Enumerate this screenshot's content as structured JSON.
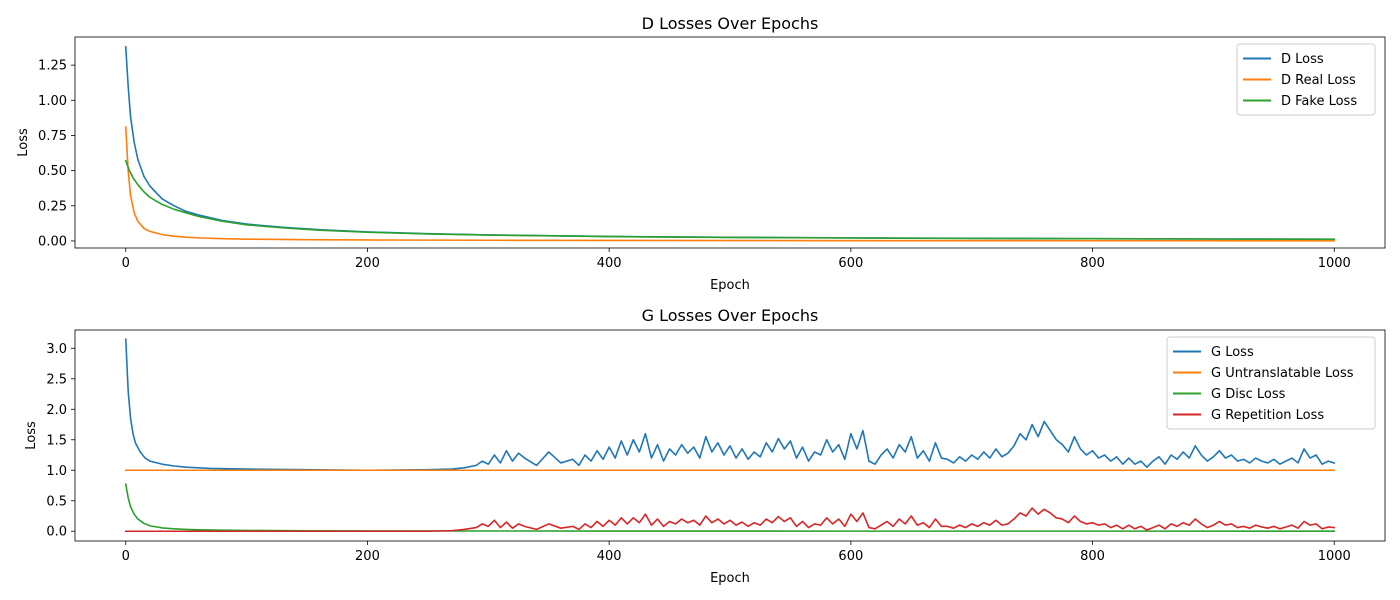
{
  "chart_data": [
    {
      "type": "line",
      "title": "D Losses Over Epochs",
      "xlabel": "Epoch",
      "ylabel": "Loss",
      "xlim": [
        -42,
        1042
      ],
      "ylim": [
        -0.05,
        1.45
      ],
      "xticks": [
        0,
        200,
        400,
        600,
        800,
        1000
      ],
      "xtick_labels": [
        "0",
        "200",
        "400",
        "600",
        "800",
        "1000"
      ],
      "yticks": [
        0.0,
        0.25,
        0.5,
        0.75,
        1.0,
        1.25
      ],
      "ytick_labels": [
        "0.00",
        "0.25",
        "0.50",
        "0.75",
        "1.00",
        "1.25"
      ],
      "grid": false,
      "legend_position": "top-right",
      "series": [
        {
          "name": "D Loss",
          "color": "#1f77b4",
          "x": [
            0,
            2,
            4,
            7,
            10,
            15,
            20,
            30,
            40,
            50,
            60,
            80,
            100,
            130,
            160,
            200,
            250,
            300,
            400,
            500,
            600,
            700,
            800,
            900,
            1000
          ],
          "y": [
            1.38,
            1.1,
            0.88,
            0.7,
            0.58,
            0.46,
            0.39,
            0.3,
            0.25,
            0.21,
            0.185,
            0.145,
            0.12,
            0.097,
            0.08,
            0.064,
            0.052,
            0.043,
            0.032,
            0.026,
            0.022,
            0.019,
            0.016,
            0.014,
            0.013
          ]
        },
        {
          "name": "D Real Loss",
          "color": "#ff7f0e",
          "x": [
            0,
            2,
            4,
            7,
            10,
            15,
            20,
            30,
            40,
            50,
            60,
            80,
            100,
            150,
            200,
            300,
            400,
            500,
            700,
            1000
          ],
          "y": [
            0.81,
            0.5,
            0.32,
            0.2,
            0.14,
            0.09,
            0.068,
            0.045,
            0.034,
            0.027,
            0.022,
            0.016,
            0.013,
            0.009,
            0.007,
            0.005,
            0.004,
            0.003,
            0.002,
            0.001
          ]
        },
        {
          "name": "D Fake Loss",
          "color": "#2ca02c",
          "x": [
            0,
            3,
            6,
            10,
            15,
            20,
            30,
            40,
            50,
            60,
            80,
            100,
            130,
            160,
            200,
            250,
            300,
            400,
            500,
            600,
            700,
            800,
            900,
            1000
          ],
          "y": [
            0.57,
            0.5,
            0.45,
            0.4,
            0.35,
            0.31,
            0.26,
            0.225,
            0.2,
            0.175,
            0.14,
            0.115,
            0.093,
            0.077,
            0.062,
            0.05,
            0.042,
            0.031,
            0.025,
            0.021,
            0.018,
            0.016,
            0.014,
            0.012
          ]
        }
      ]
    },
    {
      "type": "line",
      "title": "G Losses Over Epochs",
      "xlabel": "Epoch",
      "ylabel": "Loss",
      "xlim": [
        -42,
        1042
      ],
      "ylim": [
        -0.16,
        3.3
      ],
      "xticks": [
        0,
        200,
        400,
        600,
        800,
        1000
      ],
      "xtick_labels": [
        "0",
        "200",
        "400",
        "600",
        "800",
        "1000"
      ],
      "yticks": [
        0.0,
        0.5,
        1.0,
        1.5,
        2.0,
        2.5,
        3.0
      ],
      "ytick_labels": [
        "0.0",
        "0.5",
        "1.0",
        "1.5",
        "2.0",
        "2.5",
        "3.0"
      ],
      "grid": false,
      "legend_position": "top-right",
      "series": [
        {
          "name": "G Loss",
          "color": "#1f77b4",
          "x": [
            0,
            2,
            4,
            6,
            8,
            12,
            16,
            20,
            30,
            40,
            50,
            70,
            100,
            150,
            200,
            250,
            270,
            280,
            290,
            295,
            300,
            305,
            310,
            315,
            320,
            325,
            330,
            340,
            350,
            360,
            370,
            375,
            380,
            385,
            390,
            395,
            400,
            405,
            410,
            415,
            420,
            425,
            430,
            435,
            440,
            445,
            450,
            455,
            460,
            465,
            470,
            475,
            480,
            485,
            490,
            495,
            500,
            505,
            510,
            515,
            520,
            525,
            530,
            535,
            540,
            545,
            550,
            555,
            560,
            565,
            570,
            575,
            580,
            585,
            590,
            595,
            600,
            605,
            610,
            615,
            620,
            625,
            630,
            635,
            640,
            645,
            650,
            655,
            660,
            665,
            670,
            675,
            680,
            685,
            690,
            695,
            700,
            705,
            710,
            715,
            720,
            725,
            730,
            735,
            740,
            745,
            750,
            755,
            760,
            765,
            770,
            775,
            780,
            785,
            790,
            795,
            800,
            805,
            810,
            815,
            820,
            825,
            830,
            835,
            840,
            845,
            850,
            855,
            860,
            865,
            870,
            875,
            880,
            885,
            890,
            895,
            900,
            905,
            910,
            915,
            920,
            925,
            930,
            935,
            940,
            945,
            950,
            955,
            960,
            965,
            970,
            975,
            980,
            985,
            990,
            995,
            1000
          ],
          "y": [
            3.15,
            2.3,
            1.85,
            1.6,
            1.45,
            1.3,
            1.2,
            1.15,
            1.1,
            1.07,
            1.05,
            1.03,
            1.02,
            1.01,
            1.0,
            1.01,
            1.02,
            1.04,
            1.08,
            1.15,
            1.1,
            1.25,
            1.12,
            1.32,
            1.15,
            1.28,
            1.2,
            1.08,
            1.3,
            1.12,
            1.18,
            1.08,
            1.25,
            1.15,
            1.32,
            1.18,
            1.38,
            1.2,
            1.48,
            1.25,
            1.5,
            1.3,
            1.6,
            1.2,
            1.42,
            1.15,
            1.35,
            1.25,
            1.42,
            1.28,
            1.38,
            1.2,
            1.55,
            1.3,
            1.45,
            1.25,
            1.4,
            1.2,
            1.35,
            1.18,
            1.3,
            1.22,
            1.45,
            1.3,
            1.52,
            1.35,
            1.48,
            1.2,
            1.38,
            1.15,
            1.3,
            1.25,
            1.5,
            1.3,
            1.42,
            1.18,
            1.6,
            1.35,
            1.65,
            1.15,
            1.1,
            1.25,
            1.35,
            1.2,
            1.42,
            1.3,
            1.55,
            1.2,
            1.32,
            1.15,
            1.45,
            1.2,
            1.18,
            1.12,
            1.22,
            1.15,
            1.25,
            1.18,
            1.3,
            1.2,
            1.35,
            1.22,
            1.28,
            1.4,
            1.6,
            1.5,
            1.75,
            1.55,
            1.8,
            1.65,
            1.5,
            1.42,
            1.3,
            1.55,
            1.35,
            1.25,
            1.32,
            1.2,
            1.25,
            1.15,
            1.22,
            1.1,
            1.2,
            1.1,
            1.15,
            1.05,
            1.15,
            1.22,
            1.1,
            1.25,
            1.18,
            1.3,
            1.2,
            1.4,
            1.25,
            1.15,
            1.22,
            1.32,
            1.2,
            1.25,
            1.15,
            1.18,
            1.12,
            1.2,
            1.15,
            1.12,
            1.18,
            1.1,
            1.15,
            1.2,
            1.12,
            1.35,
            1.2,
            1.25,
            1.1,
            1.15,
            1.12
          ]
        },
        {
          "name": "G Untranslatable Loss",
          "color": "#ff7f0e",
          "x": [
            0,
            1000
          ],
          "y": [
            1.0,
            1.0
          ]
        },
        {
          "name": "G Disc Loss",
          "color": "#2ca02c",
          "x": [
            0,
            2,
            4,
            7,
            10,
            15,
            20,
            30,
            40,
            50,
            60,
            80,
            100,
            150,
            200,
            300,
            400,
            600,
            800,
            1000
          ],
          "y": [
            0.77,
            0.55,
            0.4,
            0.28,
            0.2,
            0.13,
            0.09,
            0.055,
            0.04,
            0.03,
            0.024,
            0.017,
            0.013,
            0.008,
            0.006,
            0.004,
            0.003,
            0.002,
            0.002,
            0.001
          ]
        },
        {
          "name": "G Repetition Loss",
          "color": "#d62728",
          "x": [
            0,
            250,
            270,
            280,
            290,
            295,
            300,
            305,
            310,
            315,
            320,
            325,
            330,
            340,
            350,
            360,
            370,
            375,
            380,
            385,
            390,
            395,
            400,
            405,
            410,
            415,
            420,
            425,
            430,
            435,
            440,
            445,
            450,
            455,
            460,
            465,
            470,
            475,
            480,
            485,
            490,
            495,
            500,
            505,
            510,
            515,
            520,
            525,
            530,
            535,
            540,
            545,
            550,
            555,
            560,
            565,
            570,
            575,
            580,
            585,
            590,
            595,
            600,
            605,
            610,
            615,
            620,
            625,
            630,
            635,
            640,
            645,
            650,
            655,
            660,
            665,
            670,
            675,
            680,
            685,
            690,
            695,
            700,
            705,
            710,
            715,
            720,
            725,
            730,
            735,
            740,
            745,
            750,
            755,
            760,
            765,
            770,
            775,
            780,
            785,
            790,
            795,
            800,
            805,
            810,
            815,
            820,
            825,
            830,
            835,
            840,
            845,
            850,
            855,
            860,
            865,
            870,
            875,
            880,
            885,
            890,
            895,
            900,
            905,
            910,
            915,
            920,
            925,
            930,
            935,
            940,
            945,
            950,
            955,
            960,
            965,
            970,
            975,
            980,
            985,
            990,
            995,
            1000
          ],
          "y": [
            0.0,
            0.0,
            0.01,
            0.03,
            0.06,
            0.12,
            0.08,
            0.18,
            0.06,
            0.15,
            0.05,
            0.12,
            0.08,
            0.03,
            0.12,
            0.05,
            0.08,
            0.03,
            0.12,
            0.06,
            0.16,
            0.08,
            0.18,
            0.1,
            0.22,
            0.12,
            0.22,
            0.14,
            0.28,
            0.1,
            0.2,
            0.08,
            0.16,
            0.12,
            0.2,
            0.14,
            0.18,
            0.1,
            0.25,
            0.14,
            0.2,
            0.12,
            0.18,
            0.1,
            0.15,
            0.08,
            0.14,
            0.1,
            0.2,
            0.14,
            0.24,
            0.16,
            0.22,
            0.08,
            0.16,
            0.06,
            0.12,
            0.1,
            0.22,
            0.12,
            0.2,
            0.08,
            0.28,
            0.16,
            0.3,
            0.06,
            0.04,
            0.1,
            0.16,
            0.08,
            0.2,
            0.12,
            0.25,
            0.1,
            0.14,
            0.06,
            0.2,
            0.08,
            0.08,
            0.05,
            0.1,
            0.06,
            0.12,
            0.08,
            0.14,
            0.1,
            0.18,
            0.1,
            0.12,
            0.2,
            0.3,
            0.25,
            0.38,
            0.28,
            0.36,
            0.3,
            0.22,
            0.2,
            0.14,
            0.25,
            0.16,
            0.12,
            0.14,
            0.1,
            0.12,
            0.06,
            0.1,
            0.04,
            0.1,
            0.04,
            0.08,
            0.02,
            0.06,
            0.1,
            0.04,
            0.12,
            0.08,
            0.14,
            0.1,
            0.2,
            0.12,
            0.06,
            0.1,
            0.16,
            0.1,
            0.12,
            0.06,
            0.08,
            0.05,
            0.1,
            0.07,
            0.05,
            0.08,
            0.04,
            0.07,
            0.1,
            0.05,
            0.16,
            0.1,
            0.12,
            0.04,
            0.07,
            0.06
          ]
        }
      ]
    }
  ]
}
